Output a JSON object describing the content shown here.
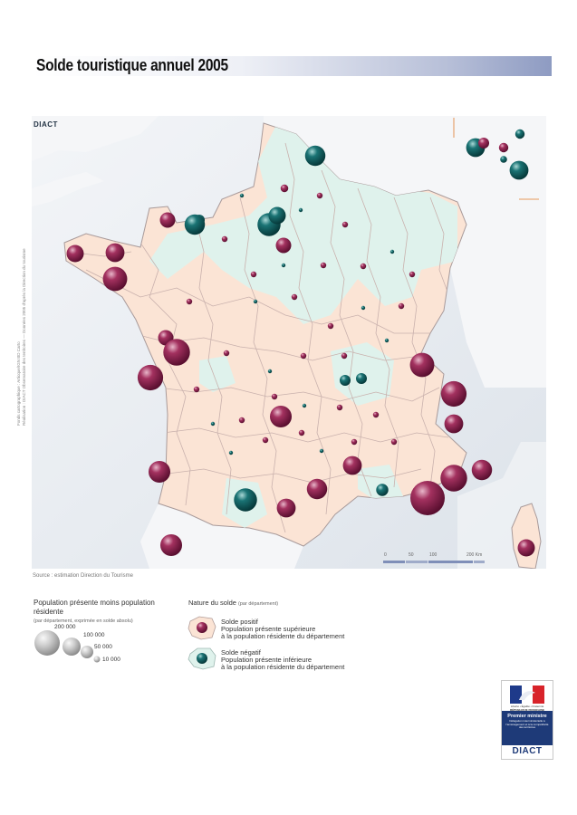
{
  "title": "Solde touristique annuel 2005",
  "logo_top": "DIACT",
  "side_credit_1": "Fonds cartographique : Articque/IGN BD Carto",
  "side_credit_2": "Réalisation : DIACT Observatoire des territoires — Données 2005 d'après la Direction du tourisme",
  "source": "Source : estimation Direction du Tourisme",
  "scale": {
    "labels": [
      "0",
      "50",
      "100",
      "200 Km"
    ]
  },
  "legend_size": {
    "title": "Population présente moins population résidente",
    "subtitle": "(par département, exprimée en solde absolu)",
    "values": [
      "200 000",
      "100 000",
      "50 000",
      "10 000"
    ]
  },
  "legend_nature": {
    "title": "Nature du solde",
    "title_note": "(par département)",
    "positive": {
      "heading": "Solde positif",
      "line1": "Population présente supérieure",
      "line2": "à la population résidente du département"
    },
    "negative": {
      "heading": "Solde négatif",
      "line1": "Population présente inférieure",
      "line2": "à la population résidente du département"
    }
  },
  "colors": {
    "positive": "#8b1a4a",
    "negative": "#0e5b5c",
    "positive_fill": "#fbe6d8",
    "negative_fill": "#e2f3ee",
    "sea": "#e9edf2",
    "border": "#b7a7a0"
  },
  "logo": {
    "motto": "Liberté • Égalité • Fraternité",
    "republic": "RÉPUBLIQUE FRANÇAISE",
    "pm": "Premier ministre",
    "delegation": "Délégation interministérielle à l'aménagement et à la compétitivité des territoires",
    "name": "DIACT"
  },
  "bubbles": [
    {
      "s": "neg",
      "v": 60000
    },
    {
      "s": "pos",
      "v": 20000
    },
    {
      "s": "pos",
      "v": 15000
    },
    {
      "s": "neg",
      "v": 15000
    },
    {
      "s": "neg",
      "v": 8000
    },
    {
      "s": "neg",
      "v": 60000
    },
    {
      "s": "neg",
      "v": 70000
    },
    {
      "s": "neg",
      "v": 90000
    },
    {
      "s": "neg",
      "v": 50000
    },
    {
      "s": "pos",
      "v": 40000
    },
    {
      "s": "pos",
      "v": 40000
    },
    {
      "s": "neg",
      "v": 20000
    },
    {
      "s": "pos",
      "v": 10000
    },
    {
      "s": "pos",
      "v": 60000
    },
    {
      "s": "pos",
      "v": 50000
    },
    {
      "s": "pos",
      "v": 100000
    },
    {
      "s": "pos",
      "v": 40000
    },
    {
      "s": "neg",
      "v": 20000
    },
    {
      "s": "pos",
      "v": 20000
    },
    {
      "s": "pos",
      "v": 100000
    },
    {
      "s": "pos",
      "v": 110000
    },
    {
      "s": "neg",
      "v": 70000
    },
    {
      "s": "pos",
      "v": 120000
    },
    {
      "s": "pos",
      "v": 110000
    },
    {
      "s": "pos",
      "v": 80000
    },
    {
      "s": "pos",
      "v": 60000
    },
    {
      "s": "pos",
      "v": 80000
    },
    {
      "s": "pos",
      "v": 70000
    },
    {
      "s": "pos",
      "v": 60000
    },
    {
      "s": "pos",
      "v": 80000
    },
    {
      "s": "pos",
      "v": 200000
    },
    {
      "s": "pos",
      "v": 120000
    },
    {
      "s": "pos",
      "v": 60000
    },
    {
      "s": "pos",
      "v": 70000
    },
    {
      "s": "neg",
      "v": 90000
    },
    {
      "s": "neg",
      "v": 20000
    },
    {
      "s": "neg",
      "v": 25000
    },
    {
      "s": "pos",
      "v": 50000
    }
  ]
}
